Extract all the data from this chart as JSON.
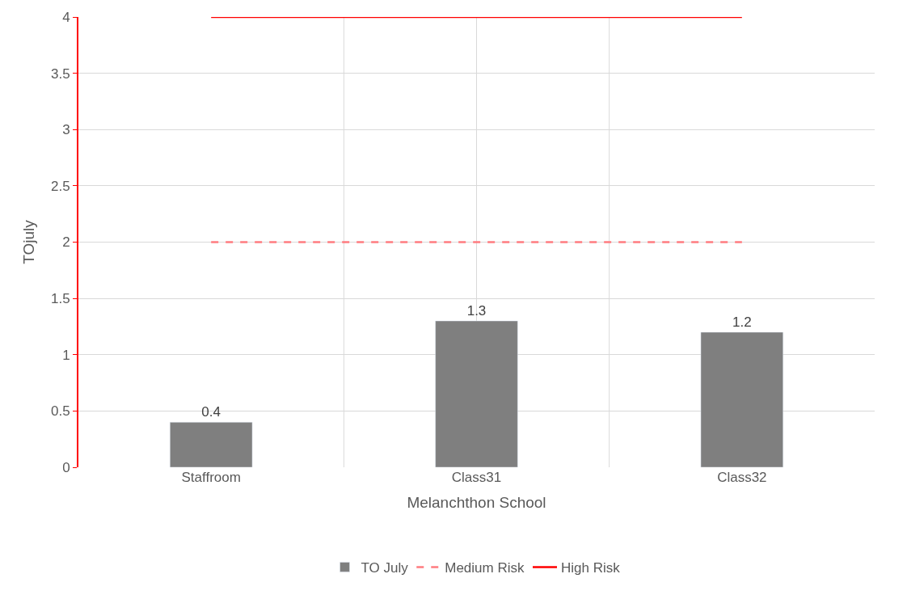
{
  "chart_data": {
    "type": "bar",
    "xlabel": "Melanchthon School",
    "ylabel": "TOjuly",
    "categories": [
      "Staffroom",
      "Class31",
      "Class32"
    ],
    "series": [
      {
        "name": "TO July",
        "color": "#7f7f7f",
        "values": [
          0.4,
          1.3,
          1.2
        ],
        "value_labels": [
          "0.4",
          "1.3",
          "1.2"
        ]
      },
      {
        "name": "Medium Risk",
        "type": "line",
        "color": "#ff7c80",
        "line_style": "dashed",
        "values": [
          2,
          2,
          2
        ]
      },
      {
        "name": "High Risk",
        "type": "line",
        "color": "#ff0000",
        "line_style": "solid",
        "values": [
          4,
          4,
          4
        ]
      }
    ],
    "ylim": [
      0,
      4
    ],
    "yticks": [
      0,
      0.5,
      1,
      1.5,
      2,
      2.5,
      3,
      3.5,
      4
    ],
    "grid": true,
    "legend": "bottom",
    "marker": "none"
  }
}
